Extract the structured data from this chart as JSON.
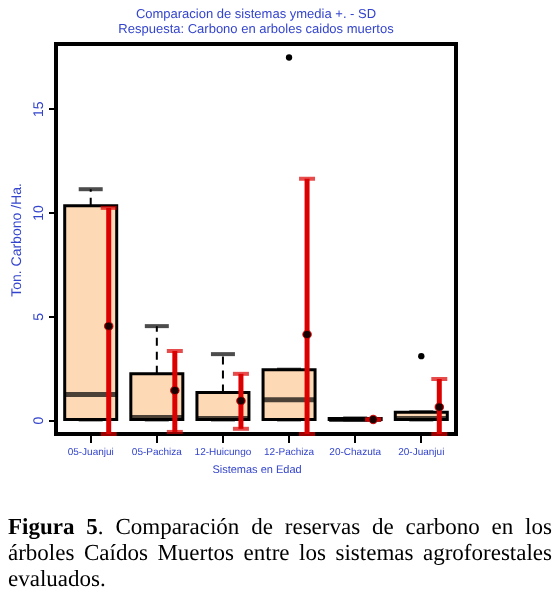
{
  "chart_data": {
    "type": "box",
    "title": "Comparacion de sistemas ymedia +. - SD",
    "subtitle": "Respuesta: Carbono en arboles caidos muertos",
    "xlabel": "Sistemas en Edad",
    "ylabel": "Ton. Carbono /Ha.",
    "categories": [
      "05-Juanjui",
      "05-Pachiza",
      "12-Huicungo",
      "12-Pachiza",
      "20-Chazuta",
      "20-Juanjui"
    ],
    "boxes": [
      {
        "low": 0,
        "q1": 0,
        "median": 1.2,
        "q3": 10.3,
        "high": 11.1
      },
      {
        "low": 0,
        "q1": 0,
        "median": 0.1,
        "q3": 2.2,
        "high": 4.5
      },
      {
        "low": 0,
        "q1": 0,
        "median": 0.05,
        "q3": 1.3,
        "high": 3.15
      },
      {
        "low": 0,
        "q1": 0,
        "median": 0.95,
        "q3": 2.4,
        "high": 2.4,
        "outliers": [
          17.45
        ]
      },
      {
        "low": 0,
        "q1": 0,
        "median": 0,
        "q3": 0.05,
        "high": 0.05
      },
      {
        "low": 0,
        "q1": 0,
        "median": 0.05,
        "q3": 0.35,
        "high": 0.35,
        "outliers": [
          3.05
        ]
      }
    ],
    "series": [
      {
        "type": "scatter",
        "color": "#dd0000",
        "x": [
          "05-Juanjui",
          "05-Pachiza",
          "12-Huicungo",
          "12-Pachiza",
          "20-Chazuta",
          "20-Juanjui"
        ],
        "values": [
          4.5,
          1.4,
          0.9,
          4.1,
          0,
          0.6
        ],
        "errors": [
          [
            -0.7,
            10.2
          ],
          [
            -0.6,
            3.3
          ],
          [
            -0.45,
            2.2
          ],
          [
            -0.7,
            11.6
          ],
          [
            0,
            0
          ],
          [
            -0.7,
            1.95
          ]
        ]
      }
    ],
    "color": "#fdd9b5",
    "ylim": [
      -0.7,
      18.1
    ],
    "yticks": [
      0,
      5,
      10,
      15
    ],
    "grid": false,
    "annotations": [
      "Figura 5. Comparación de reservas de carbono en los árboles Caídos Muertos entre los sistemas agroforestales evaluados."
    ]
  }
}
